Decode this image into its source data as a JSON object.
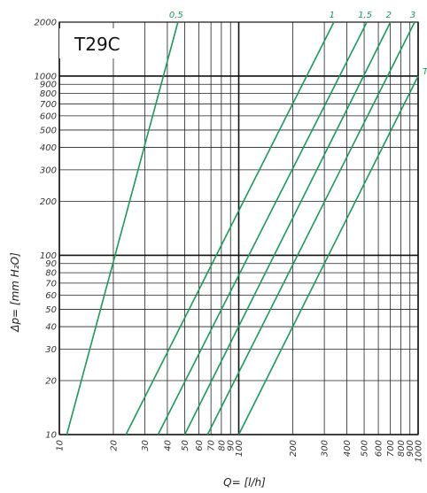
{
  "chart_data": {
    "type": "line",
    "title": "T29C",
    "xlabel": "Q= [l/h]",
    "ylabel": "Δp= [mm H₂O]",
    "x_scale": "log",
    "y_scale": "log",
    "xlim": [
      10,
      1000
    ],
    "ylim": [
      10,
      2000
    ],
    "grid": true,
    "x_tick_labels": [
      "10",
      "20",
      "30",
      "40",
      "50",
      "60",
      "70",
      "80",
      "90",
      "100",
      "200",
      "300",
      "400",
      "500",
      "600",
      "700",
      "800",
      "900",
      "1000"
    ],
    "y_tick_labels": [
      "10",
      "20",
      "30",
      "40",
      "50",
      "60",
      "70",
      "80",
      "90",
      "100",
      "200",
      "300",
      "400",
      "500",
      "600",
      "700",
      "800",
      "900",
      "1000",
      "2000"
    ],
    "line_color": "#1a9a5c",
    "series": [
      {
        "name": "0,5",
        "x": [
          11,
          45.8
        ],
        "y": [
          10,
          2000
        ]
      },
      {
        "name": "1",
        "x": [
          23.5,
          339
        ],
        "y": [
          10,
          2000
        ]
      },
      {
        "name": "1,5",
        "x": [
          35.5,
          518
        ],
        "y": [
          10,
          2000
        ]
      },
      {
        "name": "2",
        "x": [
          50,
          701
        ],
        "y": [
          10,
          2000
        ]
      },
      {
        "name": "3",
        "x": [
          67,
          956
        ],
        "y": [
          10,
          2000
        ]
      },
      {
        "name": "T",
        "x": [
          100,
          1000
        ],
        "y": [
          10,
          1000
        ]
      }
    ]
  }
}
